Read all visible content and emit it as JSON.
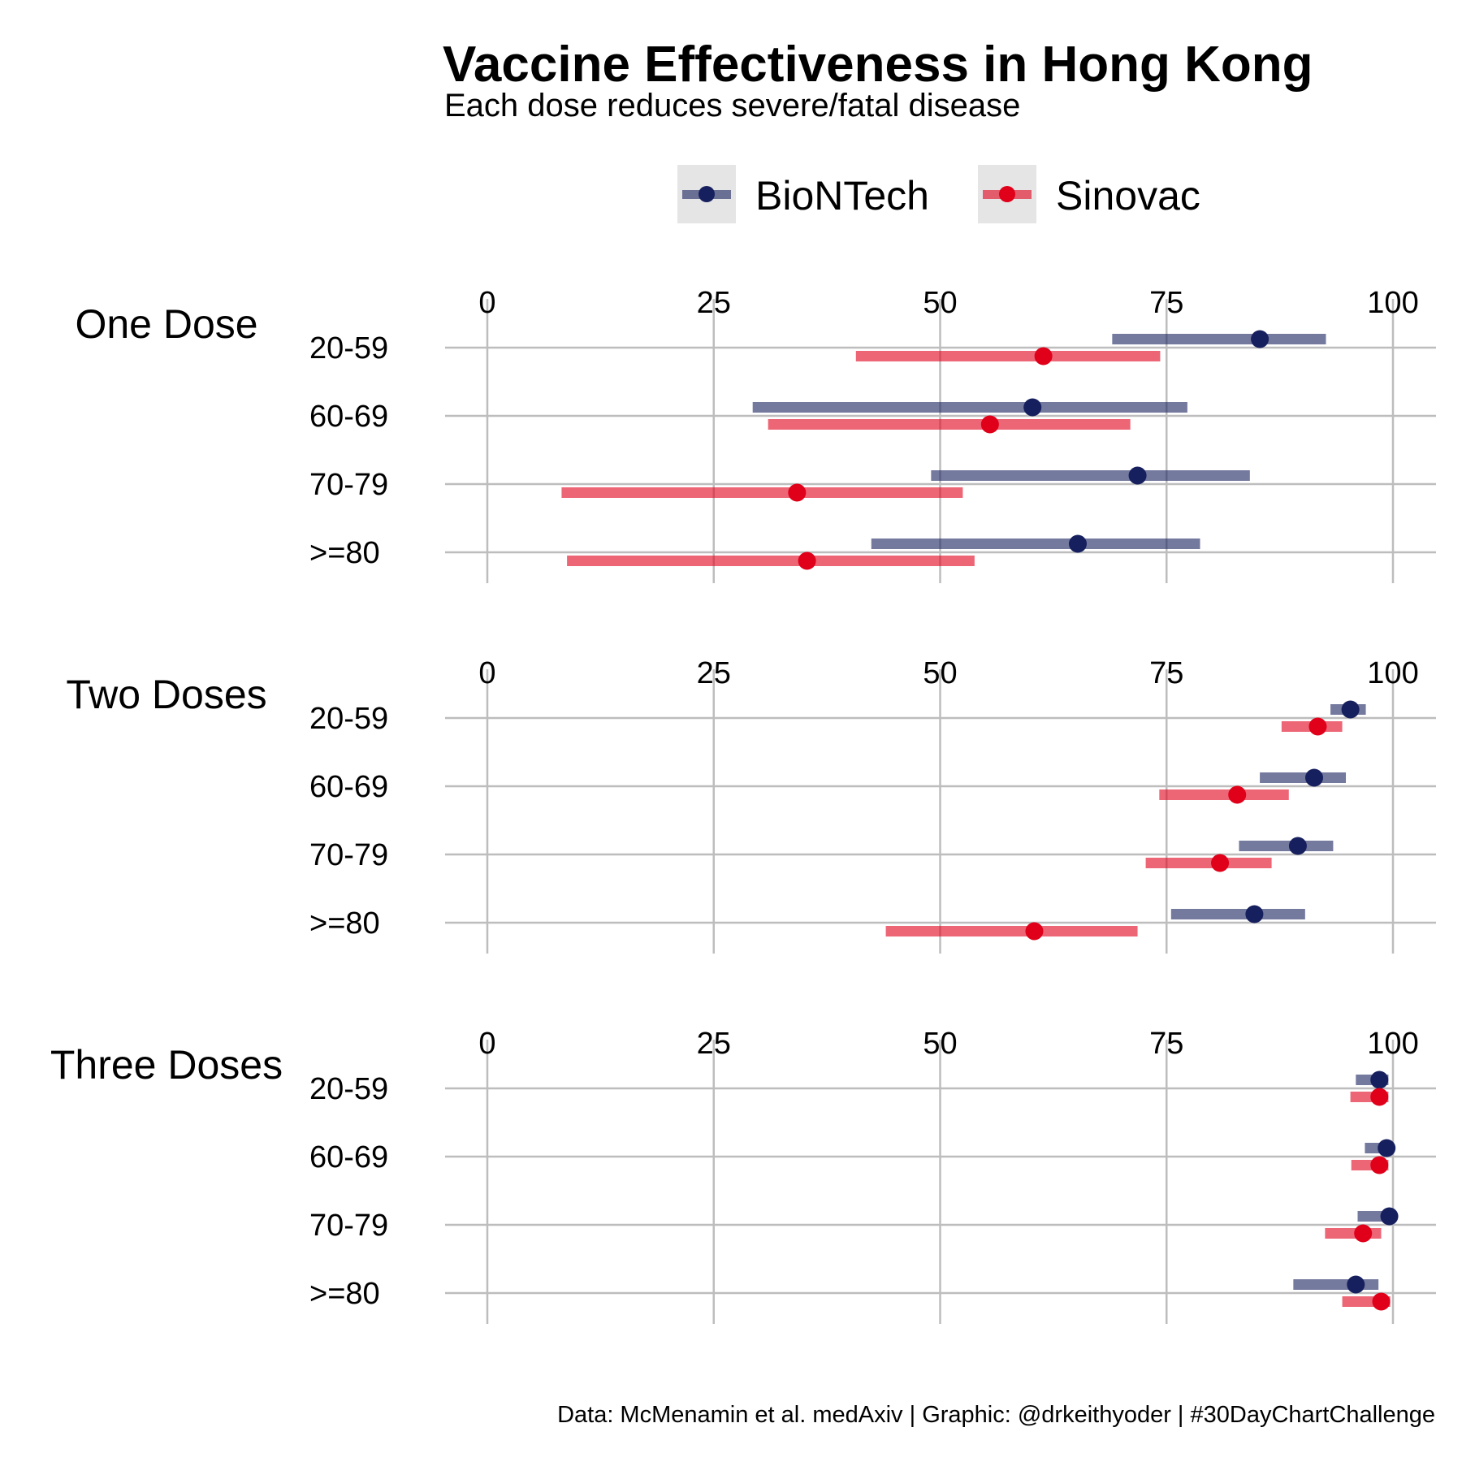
{
  "title": "Vaccine Effectiveness in Hong Kong",
  "subtitle": "Each dose reduces severe/fatal disease",
  "caption": "Data: McMenamin et al. medAxiv | Graphic: @drkeithyoder | #30DayChartChallenge",
  "colors": {
    "BioNTech": "#17205e",
    "Sinovac": "#e0001a",
    "grid": "#bdbdbd",
    "legend_key_bg": "#e5e5e5"
  },
  "chart_data": {
    "type": "forest",
    "x_ticks": [
      0,
      25,
      50,
      75,
      100
    ],
    "xlim": [
      0,
      105
    ],
    "x_axis_position": "top of each panel",
    "legend": {
      "position": "top",
      "entries": [
        "BioNTech",
        "Sinovac"
      ]
    },
    "grid": true,
    "categories": [
      "20-59",
      "60-69",
      "70-79",
      ">=80"
    ],
    "panels": [
      {
        "label": "One Dose",
        "series": [
          {
            "name": "BioNTech",
            "rows": [
              {
                "group": "20-59",
                "estimate": 85.3,
                "low": 69.0,
                "high": 92.6
              },
              {
                "group": "60-69",
                "estimate": 60.2,
                "low": 29.3,
                "high": 77.3
              },
              {
                "group": "70-79",
                "estimate": 71.8,
                "low": 49.0,
                "high": 84.2
              },
              {
                "group": ">=80",
                "estimate": 65.2,
                "low": 42.4,
                "high": 78.7
              }
            ]
          },
          {
            "name": "Sinovac",
            "rows": [
              {
                "group": "20-59",
                "estimate": 61.4,
                "low": 40.7,
                "high": 74.3
              },
              {
                "group": "60-69",
                "estimate": 55.5,
                "low": 31.0,
                "high": 71.0
              },
              {
                "group": "70-79",
                "estimate": 34.2,
                "low": 8.2,
                "high": 52.5
              },
              {
                "group": ">=80",
                "estimate": 35.3,
                "low": 8.8,
                "high": 53.8
              }
            ]
          }
        ]
      },
      {
        "label": "Two Doses",
        "series": [
          {
            "name": "BioNTech",
            "rows": [
              {
                "group": "20-59",
                "estimate": 95.3,
                "low": 93.1,
                "high": 97.0
              },
              {
                "group": "60-69",
                "estimate": 91.3,
                "low": 85.3,
                "high": 94.8
              },
              {
                "group": "70-79",
                "estimate": 89.5,
                "low": 83.0,
                "high": 93.4
              },
              {
                "group": ">=80",
                "estimate": 84.7,
                "low": 75.5,
                "high": 90.3
              }
            ]
          },
          {
            "name": "Sinovac",
            "rows": [
              {
                "group": "20-59",
                "estimate": 91.7,
                "low": 87.7,
                "high": 94.4
              },
              {
                "group": "60-69",
                "estimate": 82.8,
                "low": 74.2,
                "high": 88.5
              },
              {
                "group": "70-79",
                "estimate": 80.9,
                "low": 72.7,
                "high": 86.6
              },
              {
                "group": ">=80",
                "estimate": 60.4,
                "low": 44.0,
                "high": 71.8
              }
            ]
          }
        ]
      },
      {
        "label": "Three Doses",
        "series": [
          {
            "name": "BioNTech",
            "rows": [
              {
                "group": "20-59",
                "estimate": 98.5,
                "low": 95.9,
                "high": 99.5
              },
              {
                "group": "60-69",
                "estimate": 99.3,
                "low": 96.9,
                "high": 99.8
              },
              {
                "group": "70-79",
                "estimate": 99.6,
                "low": 96.1,
                "high": 100.0
              },
              {
                "group": ">=80",
                "estimate": 95.9,
                "low": 89.0,
                "high": 98.4
              }
            ]
          },
          {
            "name": "Sinovac",
            "rows": [
              {
                "group": "20-59",
                "estimate": 98.5,
                "low": 95.3,
                "high": 99.5
              },
              {
                "group": "60-69",
                "estimate": 98.5,
                "low": 95.4,
                "high": 99.5
              },
              {
                "group": "70-79",
                "estimate": 96.7,
                "low": 92.5,
                "high": 98.7
              },
              {
                "group": ">=80",
                "estimate": 98.7,
                "low": 94.4,
                "high": 99.7
              }
            ]
          }
        ]
      }
    ]
  }
}
